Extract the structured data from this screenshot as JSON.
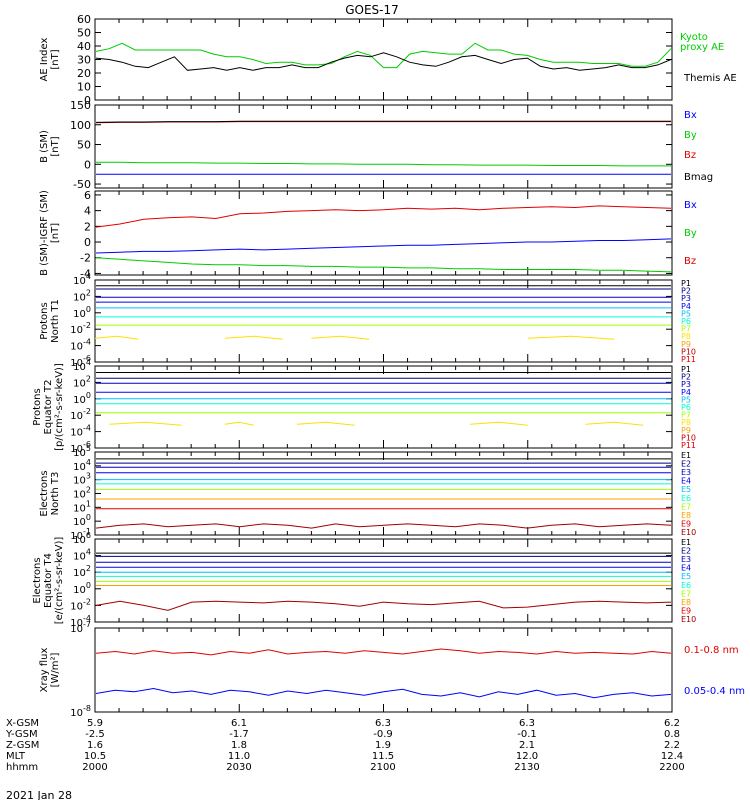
{
  "title": "GOES-17",
  "date_label": "2021 Jan 28",
  "colors": {
    "black": "#000000",
    "red": "#e00000",
    "green": "#00cc00",
    "blue": "#0000ff",
    "navy": "#000080",
    "purple": "#5000a0",
    "darkblue": "#0000c0",
    "cyan": "#00c0ff",
    "teal": "#00ffd0",
    "lime": "#a0ff00",
    "yellow": "#ffe000",
    "orange": "#ffa000",
    "darkred": "#c00000",
    "maroon": "#a00000"
  },
  "x_axis": {
    "rows": [
      {
        "label": "X-GSM",
        "values": [
          "5.9",
          "6.1",
          "6.3",
          "6.3",
          "6.2"
        ]
      },
      {
        "label": "Y-GSM",
        "values": [
          "-2.5",
          "-1.7",
          "-0.9",
          "-0.1",
          "0.8"
        ]
      },
      {
        "label": "Z-GSM",
        "values": [
          "1.6",
          "1.8",
          "1.9",
          "2.1",
          "2.2"
        ]
      },
      {
        "label": "MLT",
        "values": [
          "10.5",
          "11.0",
          "11.5",
          "12.0",
          "12.4"
        ]
      },
      {
        "label": "hhmm",
        "values": [
          "2000",
          "2030",
          "2100",
          "2130",
          "2200"
        ]
      }
    ]
  },
  "chart_data": [
    {
      "type": "line",
      "ylabel": "AE Index [nT]",
      "ylim": [
        0,
        60
      ],
      "yticks": [
        "60",
        "50",
        "40",
        "30",
        "20",
        "10",
        "0"
      ],
      "series": [
        {
          "name": "Kyoto proxy AE",
          "color": "green",
          "values": [
            36,
            38,
            42,
            37,
            37,
            37,
            37,
            37,
            37,
            34,
            32,
            32,
            30,
            27,
            28,
            28,
            26,
            26,
            27,
            32,
            36,
            33,
            24,
            24,
            34,
            36,
            35,
            34,
            34,
            42,
            37,
            37,
            34,
            33,
            30,
            28,
            28,
            28,
            27,
            27,
            27,
            25,
            25,
            28,
            38
          ]
        },
        {
          "name": "Themis AE",
          "color": "black",
          "values": [
            31,
            30,
            28,
            25,
            24,
            28,
            32,
            22,
            23,
            24,
            22,
            24,
            22,
            24,
            24,
            26,
            24,
            24,
            28,
            31,
            33,
            32,
            35,
            32,
            28,
            26,
            25,
            28,
            32,
            33,
            30,
            27,
            30,
            31,
            25,
            23,
            24,
            22,
            23,
            24,
            26,
            24,
            24,
            26,
            30
          ]
        }
      ]
    },
    {
      "type": "line",
      "ylabel": "B (SM) [nT]",
      "ylim": [
        -60,
        150
      ],
      "yticks": [
        "150",
        "100",
        "50",
        "0",
        "-50"
      ],
      "series": [
        {
          "name": "Bx",
          "color": "blue",
          "values": [
            -25,
            -25,
            -25,
            -25,
            -25,
            -25,
            -25,
            -25,
            -25,
            -25,
            -25,
            -25,
            -25,
            -25,
            -25,
            -25,
            -25,
            -25,
            -25,
            -25,
            -25,
            -25,
            -25,
            -25,
            -25
          ]
        },
        {
          "name": "By",
          "color": "green",
          "values": [
            5,
            5,
            4,
            4,
            4,
            3,
            3,
            2,
            2,
            1,
            1,
            0,
            0,
            0,
            -1,
            -1,
            -2,
            -2,
            -2,
            -3,
            -3,
            -3,
            -4,
            -4,
            -4
          ]
        },
        {
          "name": "Bz",
          "color": "red",
          "values": [
            105,
            106,
            106,
            107,
            107,
            107,
            108,
            108,
            108,
            108,
            108,
            108,
            108,
            108,
            108,
            108,
            108,
            108,
            108,
            108,
            108,
            108,
            108,
            108,
            108
          ]
        },
        {
          "name": "Bmag",
          "color": "black",
          "values": [
            106,
            107,
            107,
            108,
            108,
            108,
            109,
            109,
            109,
            109,
            109,
            109,
            109,
            109,
            109,
            109,
            109,
            109,
            109,
            109,
            109,
            109,
            109,
            109,
            109
          ]
        }
      ]
    },
    {
      "type": "line",
      "ylabel": "B (SM)-IGRF (SM) [nT]",
      "ylim": [
        -4.2,
        6.5
      ],
      "yticks": [
        "6",
        "4",
        "2",
        "0",
        "-2",
        "-4"
      ],
      "series": [
        {
          "name": "Bx",
          "color": "blue",
          "values": [
            -1.4,
            -1.3,
            -1.2,
            -1.2,
            -1.1,
            -1.0,
            -0.9,
            -1.0,
            -0.9,
            -0.8,
            -0.7,
            -0.6,
            -0.5,
            -0.4,
            -0.4,
            -0.3,
            -0.2,
            -0.1,
            0.0,
            0.0,
            0.1,
            0.2,
            0.2,
            0.3,
            0.4
          ]
        },
        {
          "name": "By",
          "color": "green",
          "values": [
            -2.0,
            -2.2,
            -2.4,
            -2.6,
            -2.8,
            -2.9,
            -2.9,
            -3.0,
            -3.0,
            -3.1,
            -3.1,
            -3.2,
            -3.2,
            -3.3,
            -3.3,
            -3.4,
            -3.4,
            -3.5,
            -3.5,
            -3.5,
            -3.5,
            -3.6,
            -3.6,
            -3.7,
            -3.8
          ]
        },
        {
          "name": "Bz",
          "color": "red",
          "values": [
            1.9,
            2.3,
            2.9,
            3.1,
            3.2,
            3.0,
            3.6,
            3.7,
            3.9,
            4.0,
            4.1,
            4.0,
            4.1,
            4.3,
            4.2,
            4.3,
            4.1,
            4.3,
            4.4,
            4.5,
            4.4,
            4.6,
            4.5,
            4.4,
            4.3
          ]
        }
      ]
    },
    {
      "type": "line",
      "log_scale": true,
      "ylabel": "Protons North T1",
      "ylim_exp": [
        -6,
        4
      ],
      "ytick_exps": [
        4,
        2,
        0,
        -2,
        -4,
        -6
      ],
      "legend": [
        "P1",
        "P2",
        "P3",
        "P4",
        "P5",
        "P6",
        "P7",
        "P8",
        "P9",
        "P10",
        "P11"
      ],
      "legend_colors": [
        "black",
        "navy",
        "darkblue",
        "blue",
        "cyan",
        "teal",
        "lime",
        "yellow",
        "orange",
        "darkred",
        "red"
      ],
      "series": [
        {
          "name": "P1",
          "color": "black",
          "level": 3.3
        },
        {
          "name": "P2",
          "color": "navy",
          "level": 2.9
        },
        {
          "name": "P3",
          "color": "darkblue",
          "level": 1.9
        },
        {
          "name": "P4",
          "color": "blue",
          "level": 1.3
        },
        {
          "name": "P5",
          "color": "cyan",
          "level": 0.6
        },
        {
          "name": "P6",
          "color": "teal",
          "level": -0.5
        },
        {
          "name": "P7",
          "color": "lime",
          "level": -1.5
        },
        {
          "name": "P9",
          "color": "yellow",
          "level": -3.1,
          "segments": [
            [
              0,
              3
            ],
            [
              9,
              13
            ],
            [
              15,
              19
            ],
            [
              30,
              36
            ]
          ]
        }
      ]
    },
    {
      "type": "line",
      "log_scale": true,
      "ylabel": "Protons Equator T2 [p/(cm²-s-sr-keV)]",
      "ylim_exp": [
        -6,
        4
      ],
      "ytick_exps": [
        4,
        2,
        0,
        -2,
        -4,
        -6
      ],
      "legend": [
        "P1",
        "P2",
        "P3",
        "P4",
        "P5",
        "P6",
        "P7",
        "P8",
        "P9",
        "P10",
        "P11"
      ],
      "legend_colors": [
        "black",
        "navy",
        "darkblue",
        "blue",
        "cyan",
        "teal",
        "lime",
        "yellow",
        "orange",
        "darkred",
        "red"
      ],
      "series": [
        {
          "name": "P1",
          "color": "black",
          "level": 3.2
        },
        {
          "name": "P2",
          "color": "navy",
          "level": 2.5
        },
        {
          "name": "P3",
          "color": "darkblue",
          "level": 1.9
        },
        {
          "name": "P4",
          "color": "blue",
          "level": 0.8
        },
        {
          "name": "P5",
          "color": "cyan",
          "level": 0.0
        },
        {
          "name": "P6",
          "color": "teal",
          "level": -0.6
        },
        {
          "name": "P7",
          "color": "lime",
          "level": -1.7
        },
        {
          "name": "P9",
          "color": "yellow",
          "level": -3.1,
          "segments": [
            [
              1,
              6
            ],
            [
              9,
              11
            ],
            [
              14,
              18
            ],
            [
              26,
              30
            ],
            [
              34,
              38
            ]
          ]
        }
      ]
    },
    {
      "type": "line",
      "log_scale": true,
      "ylabel": "Electrons North T3",
      "ylim_exp": [
        -1,
        5
      ],
      "ytick_exps": [
        5,
        4,
        3,
        2,
        1,
        0,
        -1
      ],
      "legend": [
        "E1",
        "E2",
        "E3",
        "E4",
        "E5",
        "E6",
        "E7",
        "E8",
        "E9",
        "E10"
      ],
      "legend_colors": [
        "black",
        "navy",
        "darkblue",
        "blue",
        "cyan",
        "teal",
        "lime",
        "orange",
        "red",
        "maroon"
      ],
      "series": [
        {
          "name": "E1",
          "color": "black",
          "level": 4.5
        },
        {
          "name": "E2",
          "color": "navy",
          "level": 4.2
        },
        {
          "name": "E3",
          "color": "darkblue",
          "level": 3.9
        },
        {
          "name": "E4",
          "color": "blue",
          "level": 3.5
        },
        {
          "name": "E5",
          "color": "cyan",
          "level": 3.0
        },
        {
          "name": "E6",
          "color": "teal",
          "level": 2.7
        },
        {
          "name": "E7",
          "color": "lime",
          "level": 2.3
        },
        {
          "name": "E8",
          "color": "orange",
          "level": 1.6
        },
        {
          "name": "E9",
          "color": "red",
          "level": 0.9
        },
        {
          "name": "E10",
          "color": "maroon",
          "values": [
            -0.5,
            -0.3,
            -0.2,
            -0.4,
            -0.3,
            -0.2,
            -0.4,
            -0.2,
            -0.3,
            -0.5,
            -0.2,
            -0.4,
            -0.3,
            -0.2,
            -0.3,
            -0.4,
            -0.2,
            -0.3,
            -0.5,
            -0.3,
            -0.2,
            -0.4,
            -0.3,
            -0.2,
            -0.3
          ]
        }
      ]
    },
    {
      "type": "line",
      "log_scale": true,
      "ylabel": "Electrons Equator T4 [e/(cm²-s-sr-keV)]",
      "ylim_exp": [
        -4,
        6
      ],
      "ytick_exps": [
        6,
        4,
        2,
        0,
        -2,
        -4
      ],
      "legend": [
        "E1",
        "E2",
        "E3",
        "E4",
        "E5",
        "E6",
        "E7",
        "E8",
        "E9",
        "E10"
      ],
      "legend_colors": [
        "black",
        "navy",
        "darkblue",
        "blue",
        "cyan",
        "teal",
        "lime",
        "orange",
        "red",
        "maroon"
      ],
      "series": [
        {
          "name": "E1",
          "color": "black",
          "level": 4.3
        },
        {
          "name": "E2",
          "color": "navy",
          "level": 3.9
        },
        {
          "name": "E3",
          "color": "darkblue",
          "level": 3.2
        },
        {
          "name": "E4",
          "color": "blue",
          "level": 2.6
        },
        {
          "name": "E5",
          "color": "cyan",
          "level": 2.0
        },
        {
          "name": "E6",
          "color": "teal",
          "level": 1.5
        },
        {
          "name": "E7",
          "color": "lime",
          "level": 0.9
        },
        {
          "name": "E8",
          "color": "orange",
          "level": 0.4
        },
        {
          "name": "E10",
          "color": "maroon",
          "values": [
            -2.0,
            -1.5,
            -2.0,
            -2.6,
            -1.6,
            -1.5,
            -1.6,
            -1.7,
            -1.5,
            -1.6,
            -1.8,
            -2.1,
            -1.6,
            -1.8,
            -1.9,
            -1.7,
            -1.5,
            -2.3,
            -2.2,
            -1.9,
            -1.6,
            -1.5,
            -1.6,
            -1.7,
            -1.6
          ]
        }
      ]
    },
    {
      "type": "line",
      "log_scale": true,
      "ylabel": "Xray flux [W/m²]",
      "ylim_exp": [
        -8,
        -7
      ],
      "ytick_exps": [
        -7,
        -8
      ],
      "series": [
        {
          "name": "0.1-0.8 nm",
          "color": "red",
          "values": [
            -7.3,
            -7.28,
            -7.31,
            -7.27,
            -7.3,
            -7.29,
            -7.32,
            -7.28,
            -7.3,
            -7.26,
            -7.31,
            -7.29,
            -7.28,
            -7.3,
            -7.27,
            -7.29,
            -7.31,
            -7.28,
            -7.25,
            -7.27,
            -7.3,
            -7.28,
            -7.29,
            -7.31,
            -7.28,
            -7.3,
            -7.29,
            -7.3,
            -7.31,
            -7.28,
            -7.3
          ]
        },
        {
          "name": "0.05-0.4 nm",
          "color": "blue",
          "values": [
            -7.78,
            -7.74,
            -7.76,
            -7.72,
            -7.77,
            -7.75,
            -7.79,
            -7.74,
            -7.76,
            -7.8,
            -7.75,
            -7.78,
            -7.74,
            -7.77,
            -7.8,
            -7.76,
            -7.73,
            -7.79,
            -7.81,
            -7.77,
            -7.82,
            -7.76,
            -7.79,
            -7.74,
            -7.8,
            -7.78,
            -7.83,
            -7.79,
            -7.77,
            -7.81,
            -7.79
          ]
        }
      ]
    }
  ],
  "panel_legends": [
    [
      {
        "text": "Kyoto",
        "color": "green"
      },
      {
        "text": "proxy AE",
        "color": "green"
      },
      {
        "text": "Themis AE",
        "color": "black"
      }
    ],
    [
      {
        "text": "Bx",
        "color": "blue"
      },
      {
        "text": "By",
        "color": "green"
      },
      {
        "text": "Bz",
        "color": "red"
      },
      {
        "text": "Bmag",
        "color": "black"
      }
    ],
    [
      {
        "text": "Bx",
        "color": "blue"
      },
      {
        "text": "By",
        "color": "green"
      },
      {
        "text": "Bz",
        "color": "red"
      }
    ],
    [],
    [],
    [],
    [],
    [
      {
        "text": "0.1-0.8 nm",
        "color": "red"
      },
      {
        "text": "0.05-0.4 nm",
        "color": "blue"
      }
    ]
  ],
  "panel_ylabel_lines": [
    [
      "AE Index",
      "[nT]"
    ],
    [
      "B (SM)",
      "[nT]"
    ],
    [
      "B (SM)-IGRF (SM)",
      "[nT]"
    ],
    [
      "Protons",
      "North T1"
    ],
    [
      "Protons",
      "Equator T2",
      "[p/(cm²-s-sr-keV)]"
    ],
    [
      "Electrons",
      "North T3"
    ],
    [
      "Electrons",
      "Equator T4",
      "[e/(cm²-s-sr-keV)]"
    ],
    [
      "Xray flux",
      "[W/m²]"
    ]
  ]
}
